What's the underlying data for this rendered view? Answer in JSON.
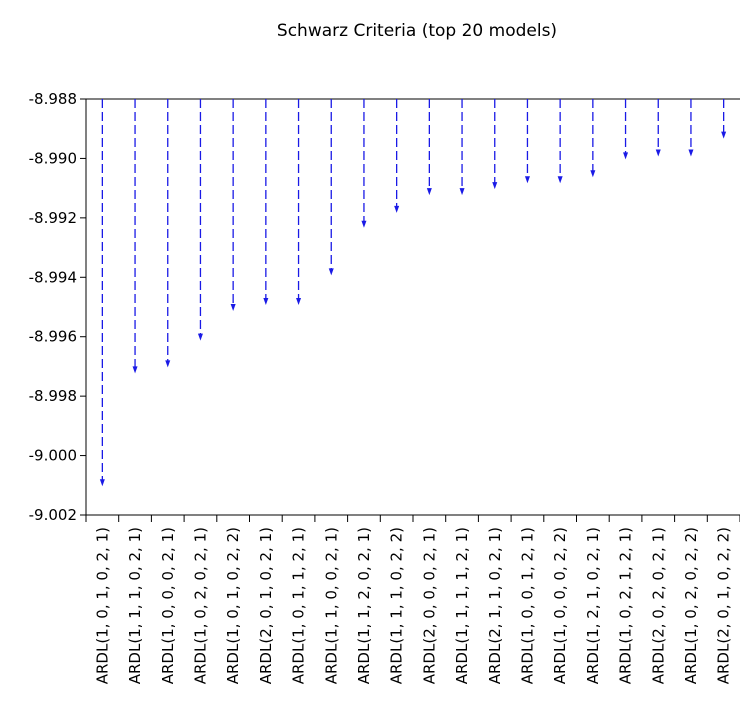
{
  "chart_data": {
    "type": "dropline",
    "title": "Schwarz Criteria (top 20 models)",
    "xlabel": "",
    "ylabel": "",
    "ylim": [
      -9.002,
      -8.988
    ],
    "yticks": [
      "-8.988",
      "-8.990",
      "-8.992",
      "-8.994",
      "-8.996",
      "-8.998",
      "-9.000",
      "-9.002"
    ],
    "categories": [
      "ARDL(1, 0, 1, 0, 2, 1)",
      "ARDL(1, 1, 1, 0, 2, 1)",
      "ARDL(1, 0, 0, 0, 2, 1)",
      "ARDL(1, 0, 2, 0, 2, 1)",
      "ARDL(1, 0, 1, 0, 2, 2)",
      "ARDL(2, 0, 1, 0, 2, 1)",
      "ARDL(1, 0, 1, 1, 2, 1)",
      "ARDL(1, 1, 0, 0, 2, 1)",
      "ARDL(1, 1, 2, 0, 2, 1)",
      "ARDL(1, 1, 1, 0, 2, 2)",
      "ARDL(2, 0, 0, 0, 2, 1)",
      "ARDL(1, 1, 1, 1, 2, 1)",
      "ARDL(2, 1, 1, 0, 2, 1)",
      "ARDL(1, 0, 0, 1, 2, 1)",
      "ARDL(1, 0, 0, 0, 2, 2)",
      "ARDL(1, 2, 1, 0, 2, 1)",
      "ARDL(1, 0, 2, 1, 2, 1)",
      "ARDL(2, 0, 2, 0, 2, 1)",
      "ARDL(1, 0, 2, 0, 2, 2)",
      "ARDL(2, 0, 1, 0, 2, 2)"
    ],
    "values": [
      -9.001,
      -8.9972,
      -8.997,
      -8.9961,
      -8.9951,
      -8.9949,
      -8.9949,
      -8.9939,
      -8.9923,
      -8.9918,
      -8.9912,
      -8.9912,
      -8.991,
      -8.9908,
      -8.9908,
      -8.9906,
      -8.99,
      -8.9899,
      -8.9899,
      -8.9893
    ],
    "colors": {
      "series": "#1a1ae6",
      "axis": "#000000"
    },
    "grid": false,
    "legend": "none"
  }
}
